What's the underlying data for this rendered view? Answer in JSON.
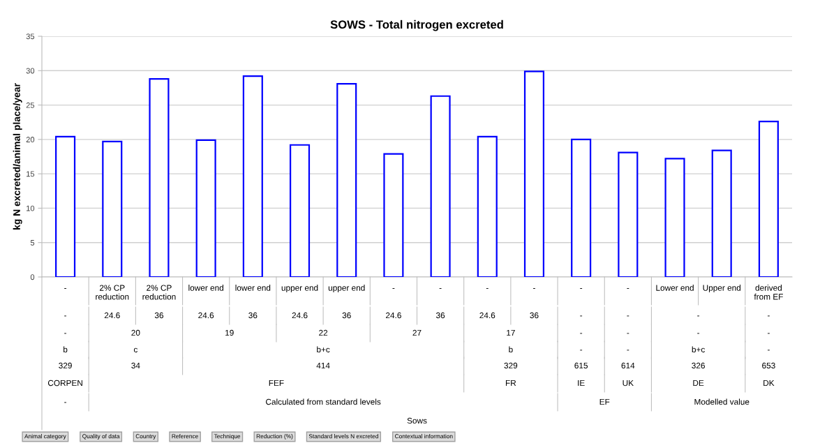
{
  "chart_data": {
    "type": "bar",
    "title": "SOWS - Total nitrogen excreted",
    "ylabel": "kg N excreted/animal place/year",
    "categories": [
      "-",
      "2% CP\nreduction",
      "2% CP\nreduction",
      "lower end",
      "lower end",
      "upper end",
      "upper end",
      "-",
      "-",
      "-",
      "-",
      "-",
      "-",
      "Lower end",
      "Upper end",
      "derived\nfrom EF"
    ],
    "values": [
      20.4,
      19.7,
      28.8,
      19.9,
      29.2,
      19.2,
      28.1,
      17.9,
      26.3,
      20.4,
      29.9,
      20.0,
      18.1,
      17.2,
      18.4,
      22.6
    ],
    "color": "#0000ff",
    "ylim": [
      0,
      35
    ],
    "yticks": [
      0,
      5,
      10,
      15,
      20,
      25,
      30,
      35
    ],
    "grid": "y",
    "annotations": [
      "-",
      "24.6",
      "36",
      "24.6",
      "36",
      "24.6",
      "36",
      "24.6",
      "36",
      "24.6",
      "36",
      "-",
      "-",
      "-",
      "-",
      "-",
      "20",
      "19",
      "22",
      "27",
      "17",
      "-",
      "-",
      "-",
      "-",
      "b",
      "c",
      "b+c",
      "b",
      "-",
      "-",
      "b+c",
      "-",
      "329",
      "34",
      "414",
      "329",
      "615",
      "614",
      "326",
      "653",
      "CORPEN",
      "FEF",
      "FR",
      "IE",
      "UK",
      "DE",
      "DK",
      "-",
      "Calculated from standard levels",
      "EF",
      "Modelled value",
      "Sows",
      "Animal category",
      "Quality of data",
      "Country",
      "Reference",
      "Technique",
      "Reduction (%)",
      "Standard levels N excreted",
      "Contextual information"
    ]
  }
}
